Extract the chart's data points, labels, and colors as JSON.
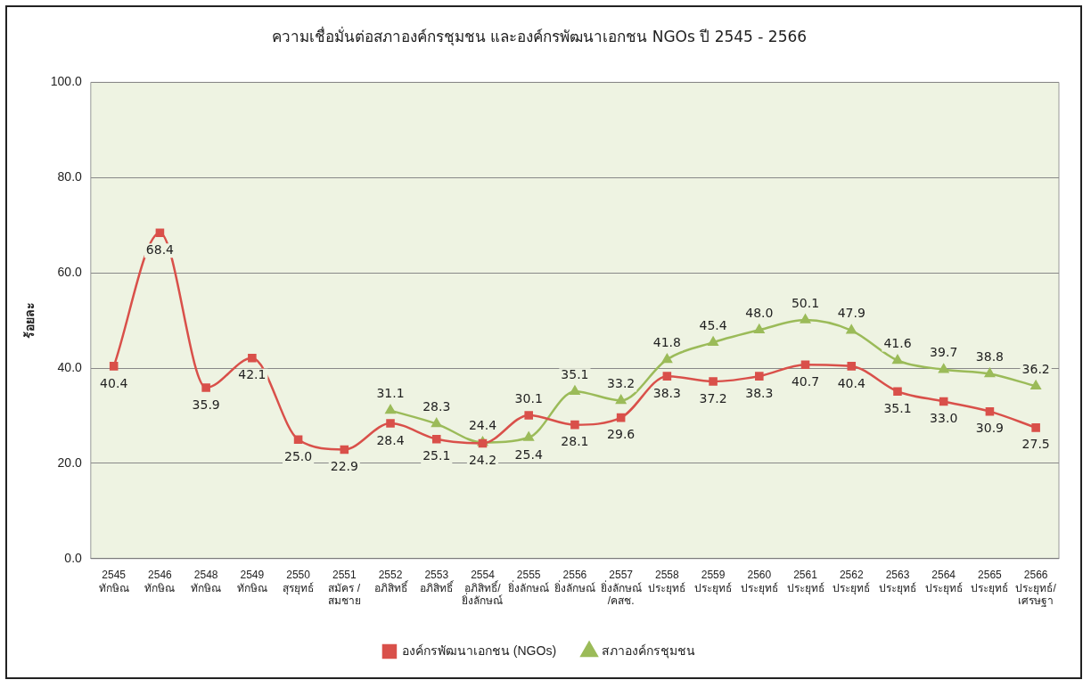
{
  "chart_data": {
    "type": "line",
    "title": "ความเชื่อมั่นต่อสภาองค์กรชุมชน และองค์กรพัฒนาเอกชน NGOs ปี 2545 - 2566",
    "ylabel": "ร้อยละ",
    "categories": [
      "2545\nทักษิณ",
      "2546\nทักษิณ",
      "2548\nทักษิณ",
      "2549\nทักษิณ",
      "2550\nสุรยุทธ์",
      "2551\nสมัคร /\nสมชาย",
      "2552\nอภิสิทธิ์",
      "2553\nอภิสิทธิ์",
      "2554\nอภิสิทธิ์/\nยิ่งลักษณ์",
      "2555\nยิ่งลักษณ์",
      "2556\nยิ่งลักษณ์",
      "2557\nยิ่งลักษณ์\n/คสช.",
      "2558\nประยุทธ์",
      "2559\nประยุทธ์",
      "2560\nประยุทธ์",
      "2561\nประยุทธ์",
      "2562\nประยุทธ์",
      "2563\nประยุทธ์",
      "2564\nประยุทธ์",
      "2565\nประยุทธ์",
      "2566\nประยุทธ์/\nเศรษฐา"
    ],
    "series": [
      {
        "name": "องค์กรพัฒนาเอกชน (NGOs)",
        "color": "#d9504a",
        "marker": "square",
        "values": [
          40.4,
          68.4,
          35.9,
          42.1,
          25.0,
          22.9,
          28.4,
          25.1,
          24.2,
          30.1,
          28.1,
          29.6,
          38.3,
          37.2,
          38.3,
          40.7,
          40.4,
          35.1,
          33.0,
          30.9,
          27.5
        ],
        "value_labels": [
          "40.4",
          "68.4",
          "35.9",
          "42.1",
          "25.0",
          "22.9",
          "28.4",
          "25.1",
          "24.2",
          "30.1",
          "28.1",
          "29.6",
          "38.3",
          "37.2",
          "38.3",
          "40.7",
          "40.4",
          "35.1",
          "33.0",
          "30.9",
          "27.5"
        ]
      },
      {
        "name": "สภาองค์กรชุมชน",
        "color": "#9bbb59",
        "marker": "triangle",
        "values": [
          null,
          null,
          null,
          null,
          null,
          null,
          31.1,
          28.3,
          24.4,
          25.4,
          35.1,
          33.2,
          41.8,
          45.4,
          48.0,
          50.1,
          47.9,
          41.6,
          39.7,
          38.8,
          36.2
        ],
        "value_labels": [
          null,
          null,
          null,
          null,
          null,
          null,
          "31.1",
          "28.3",
          "24.4",
          "25.4",
          "35.1",
          "33.2",
          "41.8",
          "45.4",
          "48.0",
          "50.1",
          "47.9",
          "41.6",
          "39.7",
          "38.8",
          "36.2"
        ]
      }
    ],
    "ylim": [
      0,
      100
    ],
    "yticks": [
      {
        "value": 0,
        "label": "0.0"
      },
      {
        "value": 20,
        "label": "20.0"
      },
      {
        "value": 40,
        "label": "40.0"
      },
      {
        "value": 60,
        "label": "60.0"
      },
      {
        "value": 80,
        "label": "80.0"
      },
      {
        "value": 100,
        "label": "100.0"
      }
    ],
    "grid": "y",
    "legend": "bottom",
    "line_style": "solid"
  }
}
